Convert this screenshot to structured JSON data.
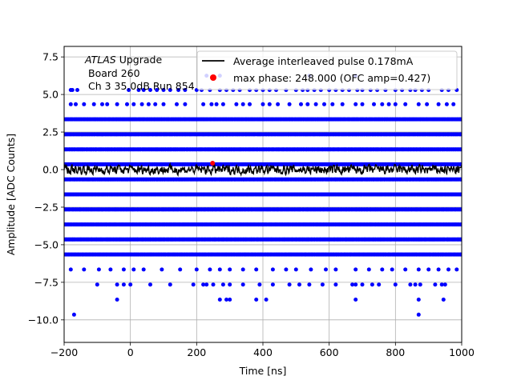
{
  "chart_data": {
    "type": "scatter",
    "xlabel": "Time [ns]",
    "ylabel": "Amplitude [ADC Counts]",
    "xlim": [
      -200,
      1000
    ],
    "ylim": [
      -11.5,
      8.2
    ],
    "xticks": [
      -200,
      0,
      200,
      400,
      600,
      800,
      1000
    ],
    "xtick_labels": [
      "−200",
      "0",
      "200",
      "400",
      "600",
      "800",
      "1000"
    ],
    "yticks": [
      -10.0,
      -7.5,
      -5.0,
      -2.5,
      0.0,
      2.5,
      5.0,
      7.5
    ],
    "ytick_labels": [
      "−10.0",
      "−7.5",
      "−5.0",
      "−2.5",
      "0.0",
      "2.5",
      "5.0",
      "7.5"
    ],
    "grid": true,
    "annotation": {
      "line1_italic": "ATLAS",
      "line1_rest": " Upgrade",
      "line2": "Board 260",
      "line3": "Ch 3 35.0dB  Run 854"
    },
    "legend": {
      "placement": "top-right",
      "entries": [
        {
          "label": "Average interleaved pulse 0.178mA",
          "marker": "line",
          "color": "#000000"
        },
        {
          "label": "max phase: 248.000 (OFC amp=0.427)",
          "marker": "dot",
          "color": "#ff0000"
        }
      ]
    },
    "series": [
      {
        "name": "samples",
        "color": "#0000ff",
        "dense_levels": [
          -5.65,
          -4.65,
          -3.65,
          -2.65,
          -1.65,
          -0.65,
          0.35,
          1.35,
          2.35,
          3.35
        ],
        "sparse_points": [
          {
            "x": 5.3,
            "xs": [
              -180,
              -175,
              -160,
              -5,
              25,
              40,
              60,
              80,
              100,
              120,
              145,
              165,
              200,
              215,
              240,
              270,
              290,
              310,
              330,
              360,
              380,
              400,
              420,
              440,
              470,
              500,
              520,
              535,
              555,
              575,
              600,
              620,
              640,
              660,
              685,
              700,
              725,
              745,
              770,
              800,
              820,
              845,
              860,
              880,
              900,
              940,
              960,
              985
            ]
          },
          {
            "x": 4.35,
            "xs": [
              -180,
              -165,
              -140,
              -110,
              -85,
              -70,
              -40,
              -10,
              10,
              35,
              55,
              75,
              100,
              140,
              165,
              220,
              245,
              260,
              280,
              320,
              340,
              360,
              400,
              420,
              445,
              480,
              515,
              535,
              560,
              585,
              610,
              640,
              680,
              700,
              735,
              760,
              780,
              800,
              830,
              870,
              895,
              930,
              955,
              975
            ]
          },
          {
            "x": -6.65,
            "xs": [
              -180,
              -140,
              -95,
              -60,
              -20,
              10,
              40,
              95,
              150,
              200,
              240,
              270,
              300,
              340,
              380,
              430,
              470,
              500,
              545,
              590,
              620,
              680,
              720,
              760,
              790,
              830,
              870,
              900,
              930,
              960,
              985
            ]
          },
          {
            "x": -7.65,
            "xs": [
              -100,
              -40,
              -20,
              0,
              60,
              120,
              190,
              220,
              230,
              250,
              280,
              300,
              340,
              390,
              430,
              480,
              510,
              540,
              580,
              620,
              670,
              680,
              700,
              730,
              750,
              800,
              845,
              860,
              875,
              920,
              940,
              950
            ]
          },
          {
            "x": -8.65,
            "xs": [
              -40,
              270,
              290,
              300,
              380,
              410,
              680,
              870,
              945
            ]
          },
          {
            "x": -9.65,
            "xs": [
              -170,
              870
            ]
          },
          {
            "x": 6.25,
            "xs": [
              230,
              270,
              540,
              680
            ]
          }
        ]
      },
      {
        "name": "Average interleaved pulse 0.178mA",
        "color": "#000000",
        "type": "line",
        "baseline": 0.0,
        "amplitude_range": [
          -0.6,
          0.6
        ]
      },
      {
        "name": "max phase",
        "color": "#ff0000",
        "x": 248,
        "y": 0.427
      }
    ]
  }
}
